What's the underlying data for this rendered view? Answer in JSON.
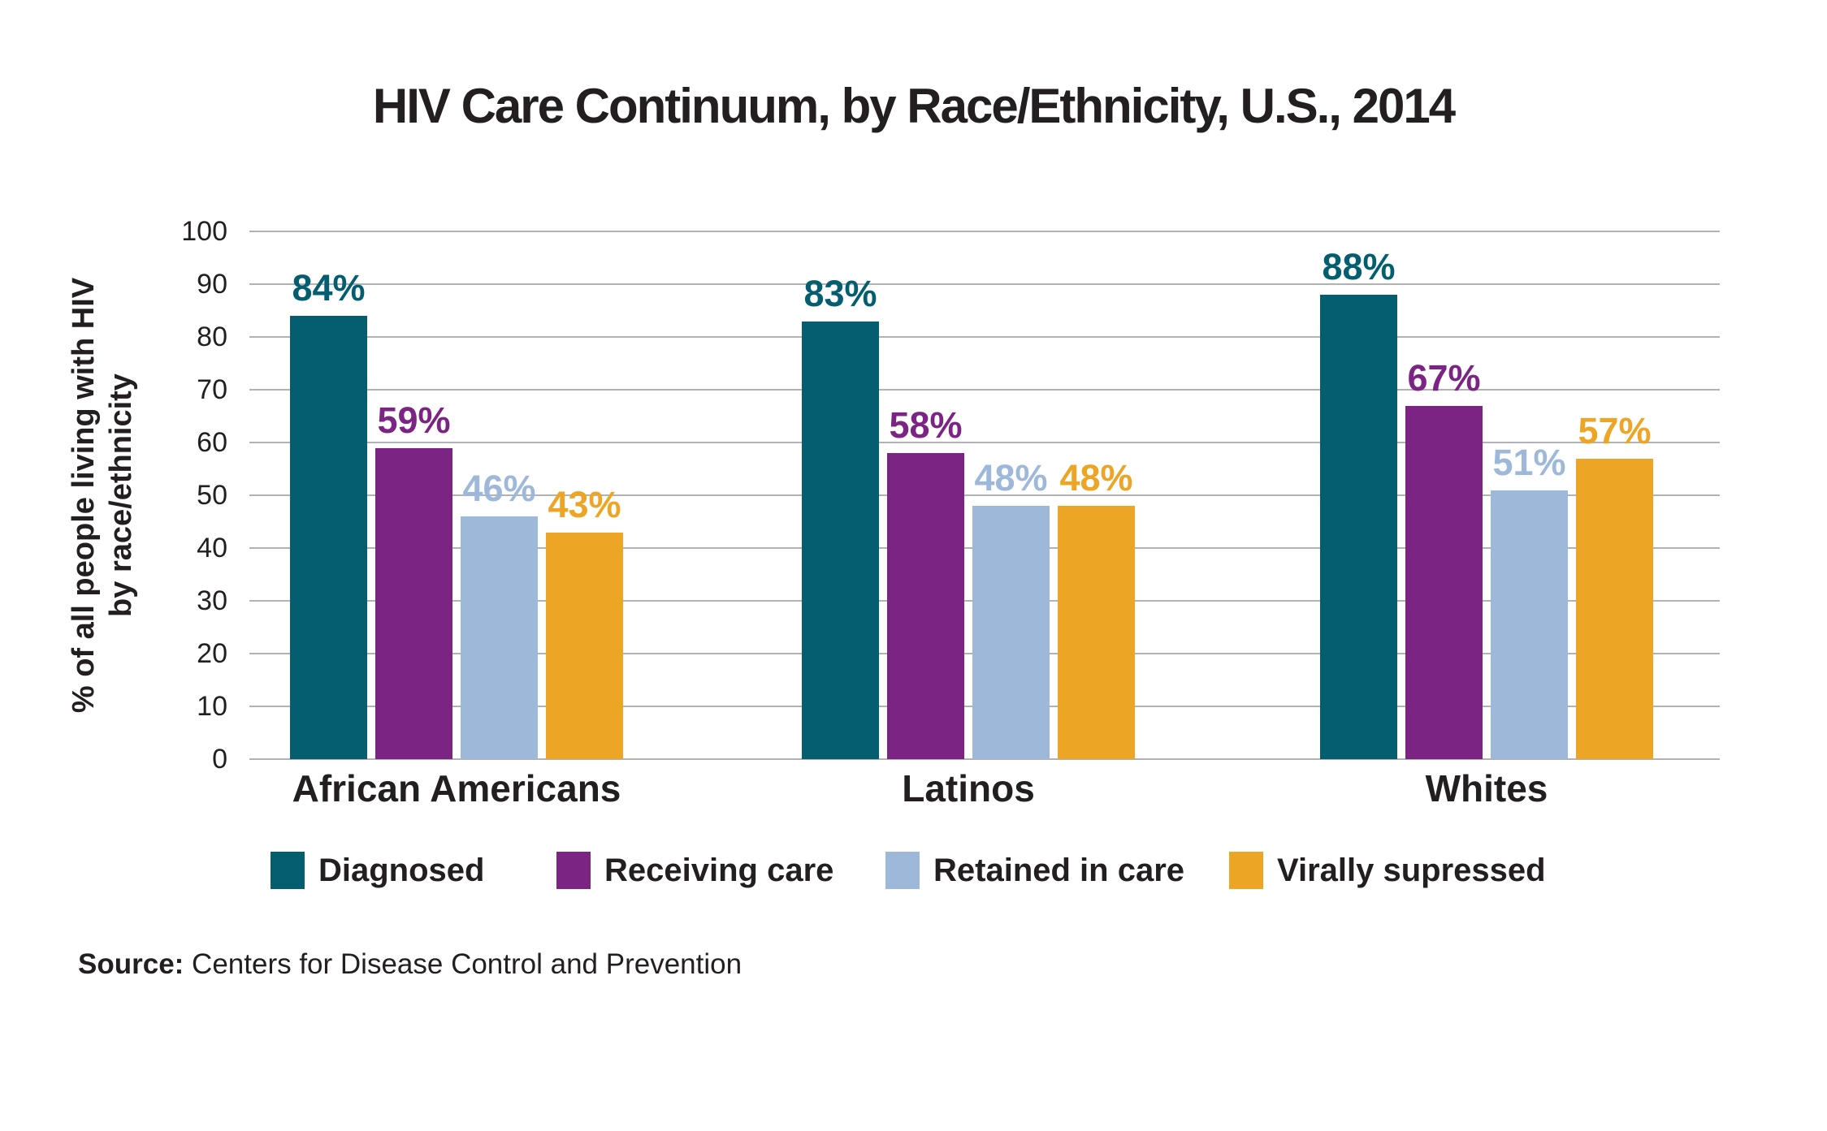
{
  "page": {
    "background": "#FFFFFF",
    "text_color": "#231F20",
    "grid_color": "#B0B2B6"
  },
  "chart_data": {
    "type": "bar",
    "title": "HIV Care Continuum, by Race/Ethnicity, U.S., 2014",
    "categories": [
      "African Americans",
      "Latinos",
      "Whites"
    ],
    "series": [
      {
        "name": "Diagnosed",
        "color": "#055E70",
        "values": [
          84,
          83,
          88
        ]
      },
      {
        "name": "Receiving care",
        "color": "#7C2483",
        "values": [
          59,
          58,
          67
        ]
      },
      {
        "name": "Retained in care",
        "color": "#9DB8D9",
        "values": [
          46,
          48,
          51
        ]
      },
      {
        "name": "Virally supressed",
        "color": "#ECA524",
        "values": [
          43,
          48,
          57
        ]
      }
    ],
    "value_label_suffix": "%",
    "ylabel_lines": [
      "% of all people living with HIV",
      "by race/ethnicity"
    ],
    "ylim": [
      0,
      100
    ],
    "yticks": [
      0,
      10,
      20,
      30,
      40,
      50,
      60,
      70,
      80,
      90,
      100
    ],
    "grid": true,
    "legend_position": "bottom"
  },
  "source": {
    "prefix": "Source:",
    "text": "Centers for Disease Control and Prevention"
  }
}
